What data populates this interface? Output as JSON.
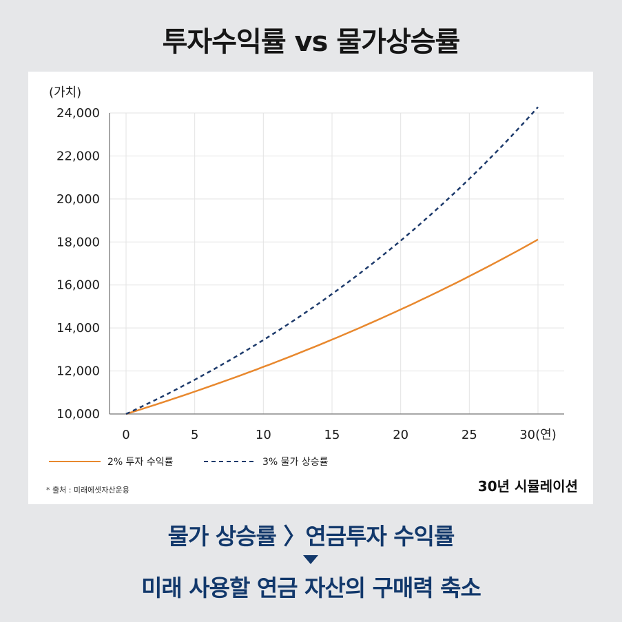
{
  "title": "투자수익률 vs 물가상승률",
  "chart_data": {
    "type": "line",
    "ylabel": "(가치)",
    "xlabel": "",
    "x_tick_labels": [
      "0",
      "5",
      "10",
      "15",
      "20",
      "25",
      "30(연)"
    ],
    "x_ticks": [
      0,
      5,
      10,
      15,
      20,
      25,
      30
    ],
    "y_tick_labels": [
      "10,000",
      "12,000",
      "14,000",
      "16,000",
      "18,000",
      "20,000",
      "22,000",
      "24,000"
    ],
    "y_ticks": [
      10000,
      12000,
      14000,
      16000,
      18000,
      20000,
      22000,
      24000
    ],
    "xlim": [
      0,
      30
    ],
    "ylim": [
      10000,
      24000
    ],
    "grid": true,
    "legend_position": "bottom-left",
    "series": [
      {
        "name": "2% 투자 수익률",
        "color": "#e8882e",
        "style": "solid",
        "x": [
          0,
          5,
          10,
          15,
          20,
          25,
          30
        ],
        "values": [
          10000,
          11041,
          12190,
          13459,
          14859,
          16406,
          18114
        ]
      },
      {
        "name": "3% 물가 상승률",
        "color": "#1d3a6b",
        "style": "dashed",
        "x": [
          0,
          5,
          10,
          15,
          20,
          25,
          30
        ],
        "values": [
          10000,
          11593,
          13439,
          15580,
          18061,
          20938,
          24273
        ]
      }
    ]
  },
  "source": "* 출처 : 미래에셋자산운용",
  "simulation_label": "30년 시뮬레이션",
  "bottom": {
    "line1": "물가 상승률 〉연금투자 수익률",
    "line2": "미래 사용할 연금 자산의 구매력 축소",
    "arrow_icon": "down-triangle-icon"
  }
}
